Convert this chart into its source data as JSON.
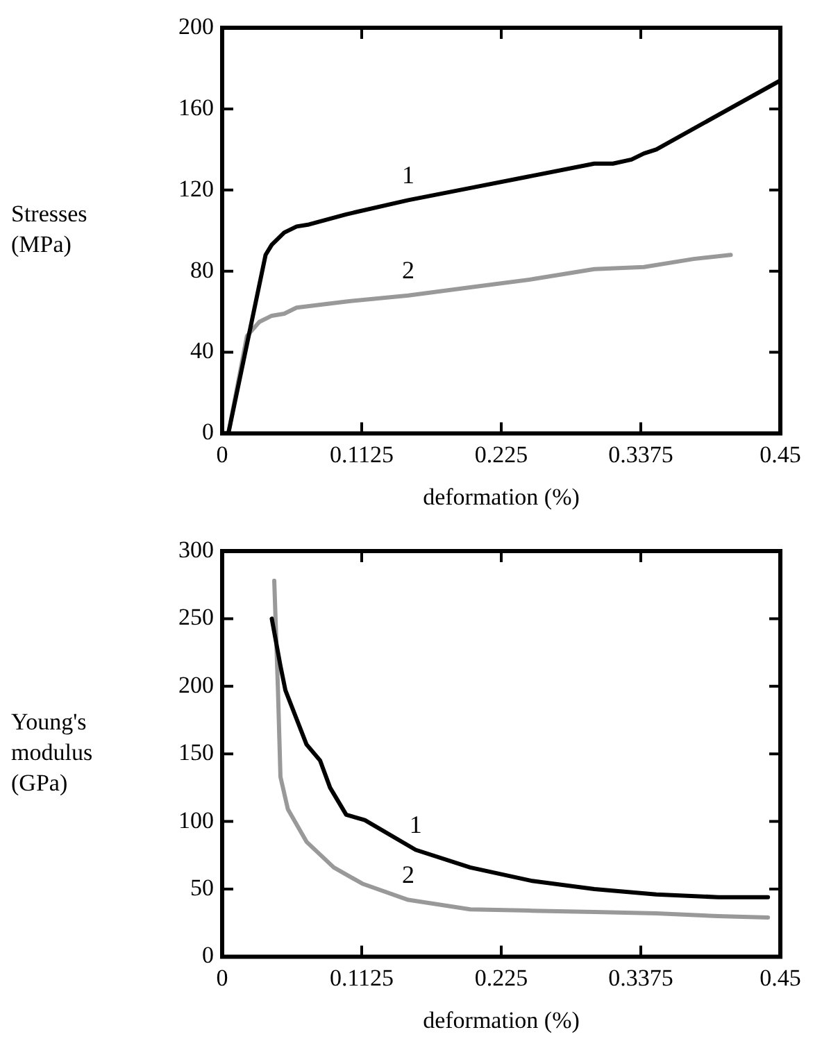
{
  "chart_data": [
    {
      "type": "line",
      "xlabel": "deformation (%)",
      "ylabel": "Stresses (MPa)",
      "xlim": [
        0,
        0.45
      ],
      "ylim": [
        0,
        200
      ],
      "xticks": [
        0,
        0.1125,
        0.225,
        0.3375,
        0.45
      ],
      "yticks": [
        0,
        40,
        80,
        120,
        160,
        200
      ],
      "grid": false,
      "legend": false,
      "marker": "none",
      "line_style": "solid",
      "series": [
        {
          "name": "1",
          "color": "#000000",
          "x": [
            0,
            0.005,
            0.035,
            0.04,
            0.05,
            0.06,
            0.07,
            0.1,
            0.15,
            0.2,
            0.3,
            0.315,
            0.33,
            0.34,
            0.35,
            0.45
          ],
          "values": [
            0,
            0,
            88,
            93,
            99,
            102,
            103,
            108,
            115,
            121,
            133,
            133,
            135,
            138,
            140,
            174
          ]
        },
        {
          "name": "2",
          "color": "#999999",
          "x": [
            0,
            0.005,
            0.02,
            0.03,
            0.04,
            0.05,
            0.06,
            0.1,
            0.15,
            0.2,
            0.25,
            0.3,
            0.34,
            0.38,
            0.41
          ],
          "values": [
            0,
            0,
            48,
            55,
            58,
            59,
            62,
            65,
            68,
            72,
            76,
            81,
            82,
            86,
            88
          ]
        }
      ]
    },
    {
      "type": "line",
      "xlabel": "deformation (%)",
      "ylabel": "Young's modulus (GPa)",
      "xlim": [
        0,
        0.45
      ],
      "ylim": [
        0,
        300
      ],
      "xticks": [
        0,
        0.1125,
        0.225,
        0.3375,
        0.45
      ],
      "yticks": [
        0,
        50,
        100,
        150,
        200,
        250,
        300
      ],
      "grid": false,
      "legend": false,
      "marker": "none",
      "line_style": "solid",
      "series": [
        {
          "name": "1",
          "color": "#000000",
          "x": [
            0.04,
            0.047,
            0.051,
            0.068,
            0.079,
            0.087,
            0.1,
            0.115,
            0.156,
            0.2,
            0.25,
            0.3,
            0.35,
            0.4,
            0.44
          ],
          "values": [
            250,
            215,
            197,
            157,
            145,
            125,
            105,
            101,
            79,
            66,
            56,
            50,
            46,
            44,
            44
          ]
        },
        {
          "name": "2",
          "color": "#999999",
          "x": [
            0.042,
            0.045,
            0.047,
            0.053,
            0.068,
            0.09,
            0.113,
            0.15,
            0.2,
            0.25,
            0.3,
            0.35,
            0.4,
            0.44
          ],
          "values": [
            278,
            197,
            133,
            109,
            85,
            66,
            54,
            42,
            35,
            34,
            33,
            32,
            30,
            29
          ]
        }
      ]
    }
  ]
}
